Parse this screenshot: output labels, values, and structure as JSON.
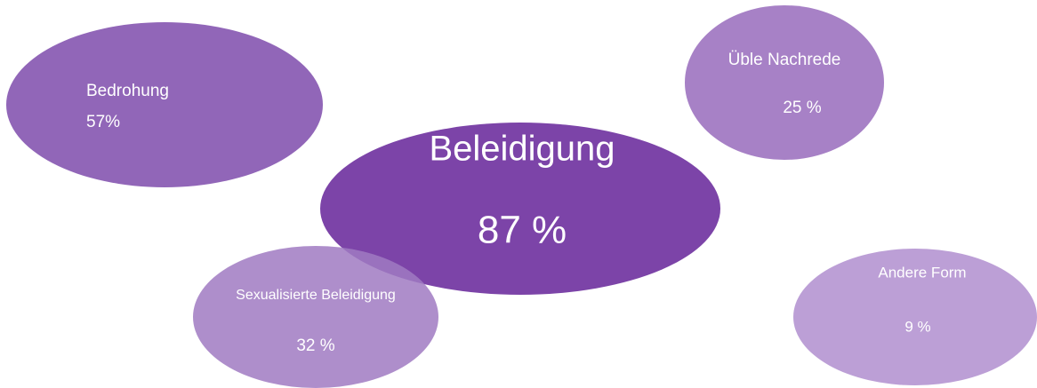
{
  "chart_data": {
    "type": "bubble",
    "categories": [
      "Bedrohung",
      "Beleidigung",
      "Sexualisierte Beleidigung",
      "Üble Nachrede",
      "Andere Form"
    ],
    "values": [
      57,
      87,
      32,
      25,
      9
    ],
    "value_labels": [
      "57%",
      "87 %",
      "32 %",
      "25 %",
      "9 %"
    ],
    "colors": [
      "#9166b8",
      "#7c44a8",
      "#a07ac2",
      "#a781c6",
      "#bc9fd6"
    ]
  }
}
